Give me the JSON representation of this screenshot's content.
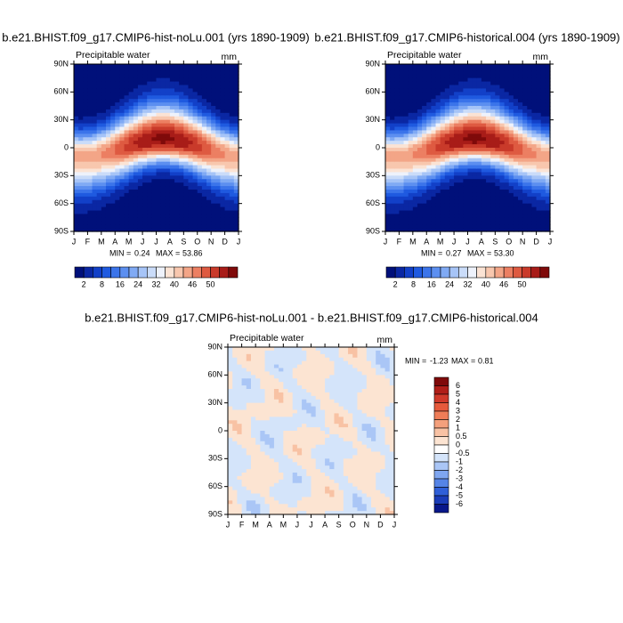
{
  "chart_data": [
    {
      "type": "contour",
      "title": "b.e21.BHIST.f09_g17.CMIP6-hist-noLu.001 (yrs 1890-1909)",
      "subtitle": "Precipitable water",
      "units": "mm",
      "categories": [
        "J",
        "F",
        "M",
        "A",
        "M",
        "J",
        "J",
        "A",
        "S",
        "O",
        "N",
        "D",
        "J"
      ],
      "ylim": [
        -90,
        90
      ],
      "yticks": [
        {
          "value": 90,
          "label": "90N"
        },
        {
          "value": 60,
          "label": "60N"
        },
        {
          "value": 30,
          "label": "30N"
        },
        0,
        {
          "value": -30,
          "label": "30S"
        },
        {
          "value": -60,
          "label": "60S"
        },
        {
          "value": -90,
          "label": "90S"
        }
      ],
      "min_text": "MIN =",
      "min": 0.24,
      "max_text": "MAX =",
      "max": 53.86,
      "colorbar": {
        "orientation": "horizontal",
        "labels": [
          2,
          8,
          16,
          24,
          32,
          40,
          46,
          50
        ],
        "colors": [
          "#00107a",
          "#0a27a3",
          "#1240c8",
          "#1f5ae0",
          "#3b74ea",
          "#5c8ff0",
          "#80aaf4",
          "#a6c4f7",
          "#cadcf9",
          "#eef2fb",
          "#fbe3d4",
          "#f8c7ae",
          "#f3a587",
          "#ec7f62",
          "#de5a41",
          "#c93a2a",
          "#a81c18",
          "#7f0a0a"
        ]
      }
    },
    {
      "type": "contour",
      "title": "b.e21.BHIST.f09_g17.CMIP6-historical.004 (yrs 1890-1909)",
      "subtitle": "Precipitable water",
      "units": "mm",
      "categories": [
        "J",
        "F",
        "M",
        "A",
        "M",
        "J",
        "J",
        "A",
        "S",
        "O",
        "N",
        "D",
        "J"
      ],
      "ylim": [
        -90,
        90
      ],
      "yticks": [
        {
          "value": 90,
          "label": "90N"
        },
        {
          "value": 60,
          "label": "60N"
        },
        {
          "value": 30,
          "label": "30N"
        },
        0,
        {
          "value": -30,
          "label": "30S"
        },
        {
          "value": -60,
          "label": "60S"
        },
        {
          "value": -90,
          "label": "90S"
        }
      ],
      "min_text": "MIN =",
      "min": 0.27,
      "max_text": "MAX =",
      "max": {
        "value": 53.3,
        "label": "53.30"
      },
      "colorbar": {
        "orientation": "horizontal",
        "labels": [
          2,
          8,
          16,
          24,
          32,
          40,
          46,
          50
        ],
        "colors": [
          "#00107a",
          "#0a27a3",
          "#1240c8",
          "#1f5ae0",
          "#3b74ea",
          "#5c8ff0",
          "#80aaf4",
          "#a6c4f7",
          "#cadcf9",
          "#eef2fb",
          "#fbe3d4",
          "#f8c7ae",
          "#f3a587",
          "#ec7f62",
          "#de5a41",
          "#c93a2a",
          "#a81c18",
          "#7f0a0a"
        ]
      }
    },
    {
      "type": "difference",
      "title": "b.e21.BHIST.f09_g17.CMIP6-hist-noLu.001 - b.e21.BHIST.f09_g17.CMIP6-historical.004",
      "subtitle": "Precipitable water",
      "units": "mm",
      "categories": [
        "J",
        "F",
        "M",
        "A",
        "M",
        "J",
        "J",
        "A",
        "S",
        "O",
        "N",
        "D",
        "J"
      ],
      "ylim": [
        -90,
        90
      ],
      "yticks": [
        {
          "value": 90,
          "label": "90N"
        },
        {
          "value": 60,
          "label": "60N"
        },
        {
          "value": 30,
          "label": "30N"
        },
        0,
        {
          "value": -30,
          "label": "30S"
        },
        {
          "value": -60,
          "label": "60S"
        },
        {
          "value": -90,
          "label": "90S"
        }
      ],
      "min_text": "MIN =",
      "min": -1.23,
      "max_text": "MAX =",
      "max": 0.81,
      "colorbar": {
        "orientation": "vertical",
        "labels": [
          6,
          5,
          4,
          3,
          2,
          1,
          0.5,
          0,
          -0.5,
          -1,
          -2,
          -3,
          -4,
          -5,
          -6
        ],
        "colors": [
          "#7f0a0a",
          "#b01e18",
          "#d0392a",
          "#e65a3c",
          "#ef7d58",
          "#f4a07c",
          "#f8c2a4",
          "#fce4d2",
          "#ffffff",
          "#d4e4fa",
          "#aac6f6",
          "#7fa6f0",
          "#5584e6",
          "#2f5fd8",
          "#1a3cb8",
          "#08178a"
        ]
      }
    }
  ]
}
